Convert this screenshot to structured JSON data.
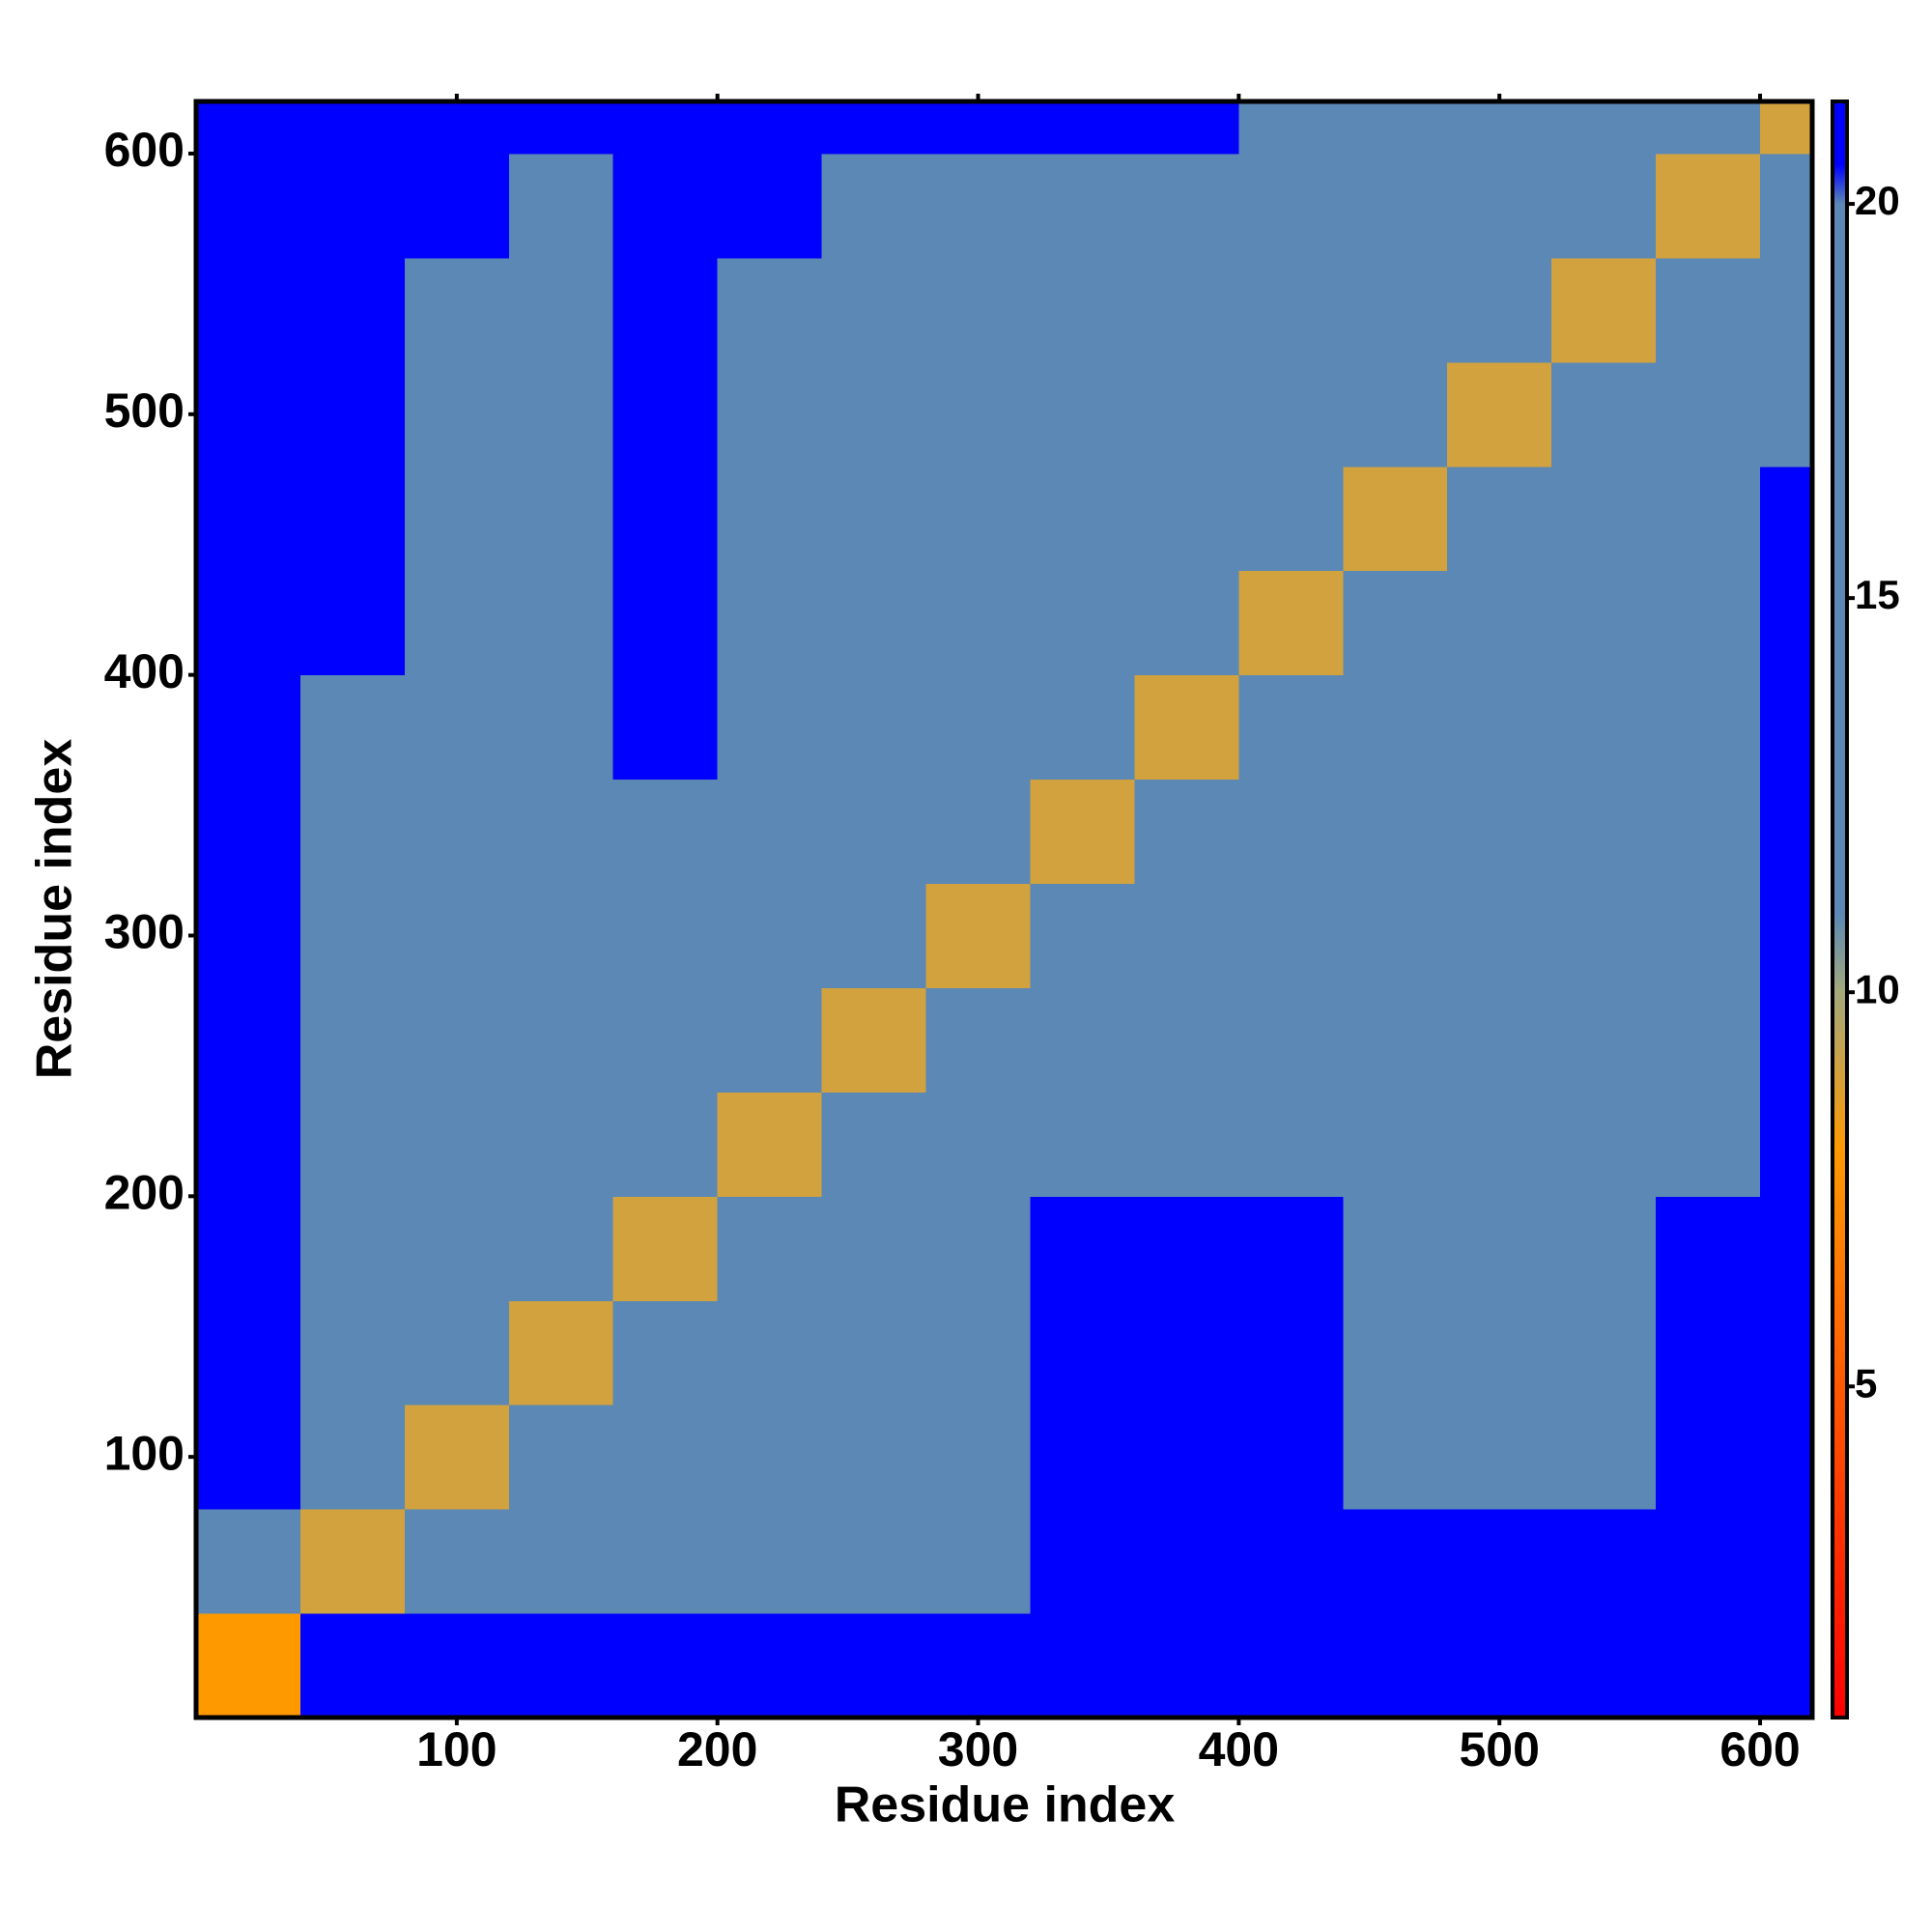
{
  "chart_data": {
    "type": "heatmap",
    "xlabel": "Residue index",
    "ylabel": "Residue index",
    "xlim": [
      0,
      620
    ],
    "ylim": [
      0,
      620
    ],
    "xticks": [
      100,
      200,
      300,
      400,
      500,
      600
    ],
    "yticks": [
      100,
      200,
      300,
      400,
      500,
      600
    ],
    "x_edges": [
      0,
      40,
      80,
      120,
      160,
      200,
      240,
      280,
      320,
      360,
      400,
      440,
      480,
      520,
      560,
      600,
      620
    ],
    "y_edges": [
      0,
      40,
      80,
      120,
      160,
      200,
      240,
      280,
      320,
      360,
      400,
      440,
      480,
      520,
      560,
      600,
      620
    ],
    "z": [
      [
        8,
        21,
        21,
        21,
        21,
        21,
        21,
        21,
        21,
        21,
        21,
        21,
        21,
        21,
        21,
        21
      ],
      [
        19,
        9,
        17,
        17,
        17,
        17,
        17,
        19,
        21,
        21,
        21,
        21,
        21,
        21,
        21,
        21
      ],
      [
        21,
        17,
        9,
        17,
        17,
        17,
        17,
        18,
        21,
        21,
        21,
        20,
        19.5,
        20,
        21,
        21
      ],
      [
        21,
        17,
        17,
        9,
        17,
        17,
        17,
        18,
        21,
        21,
        21,
        19.5,
        19.5,
        19.5,
        21,
        21
      ],
      [
        21,
        17,
        17,
        17,
        9,
        17,
        17,
        18,
        21,
        21,
        21,
        20,
        20,
        20,
        21,
        21
      ],
      [
        21,
        17,
        17,
        17,
        17,
        9,
        17,
        17.5,
        19,
        18.5,
        18.5,
        18.5,
        18.5,
        18.5,
        20,
        21
      ],
      [
        21,
        17,
        17,
        17,
        17,
        17,
        9,
        17,
        18,
        18,
        18,
        18.5,
        18.5,
        18.5,
        19.5,
        21
      ],
      [
        21,
        17.5,
        17,
        17,
        17,
        17,
        17,
        9,
        17.5,
        18,
        18,
        18.5,
        18.5,
        18.5,
        19.5,
        21
      ],
      [
        21,
        18,
        18,
        18,
        18,
        17.5,
        17.5,
        17,
        9,
        17.5,
        17.5,
        18,
        18,
        18,
        19,
        21
      ],
      [
        21,
        20,
        19.5,
        19.5,
        21,
        19,
        18,
        17.5,
        17,
        9,
        17,
        17.5,
        18,
        18.5,
        19,
        20.5
      ],
      [
        21,
        21,
        19.5,
        19.5,
        21,
        19,
        18,
        18,
        18,
        17,
        9,
        17,
        17.5,
        18,
        19,
        20.5
      ],
      [
        21,
        21,
        19,
        19,
        21,
        19,
        18.5,
        18.5,
        18.5,
        17.5,
        17,
        9,
        17,
        17.5,
        18,
        20.5
      ],
      [
        21,
        21,
        19.5,
        19.5,
        21,
        19.5,
        19,
        19,
        19,
        18.5,
        17.5,
        17,
        9,
        17,
        17.5,
        18
      ],
      [
        21,
        21,
        19.5,
        19,
        21,
        19.5,
        19,
        19.5,
        19.5,
        19,
        18.5,
        17.5,
        17,
        9,
        17,
        17.5
      ],
      [
        21,
        21,
        20.5,
        20,
        21,
        20.5,
        20,
        20,
        20,
        19.5,
        19,
        18,
        17.5,
        17,
        9,
        17
      ],
      [
        21,
        21,
        21,
        21,
        21,
        21,
        21,
        21,
        21,
        20.5,
        20,
        19,
        18,
        17.5,
        17,
        9
      ]
    ],
    "clim": [
      0.8,
      21.3
    ],
    "cticks": [
      5,
      10,
      15,
      20
    ],
    "colorscale": [
      [
        0.8,
        "#ff0000"
      ],
      [
        8,
        "#ff9900"
      ],
      [
        10,
        "#a3aa7c"
      ],
      [
        11,
        "#5b88b5"
      ],
      [
        20,
        "#5b88b5"
      ],
      [
        20.5,
        "#0000ff"
      ],
      [
        21.3,
        "#0000ff"
      ]
    ]
  }
}
